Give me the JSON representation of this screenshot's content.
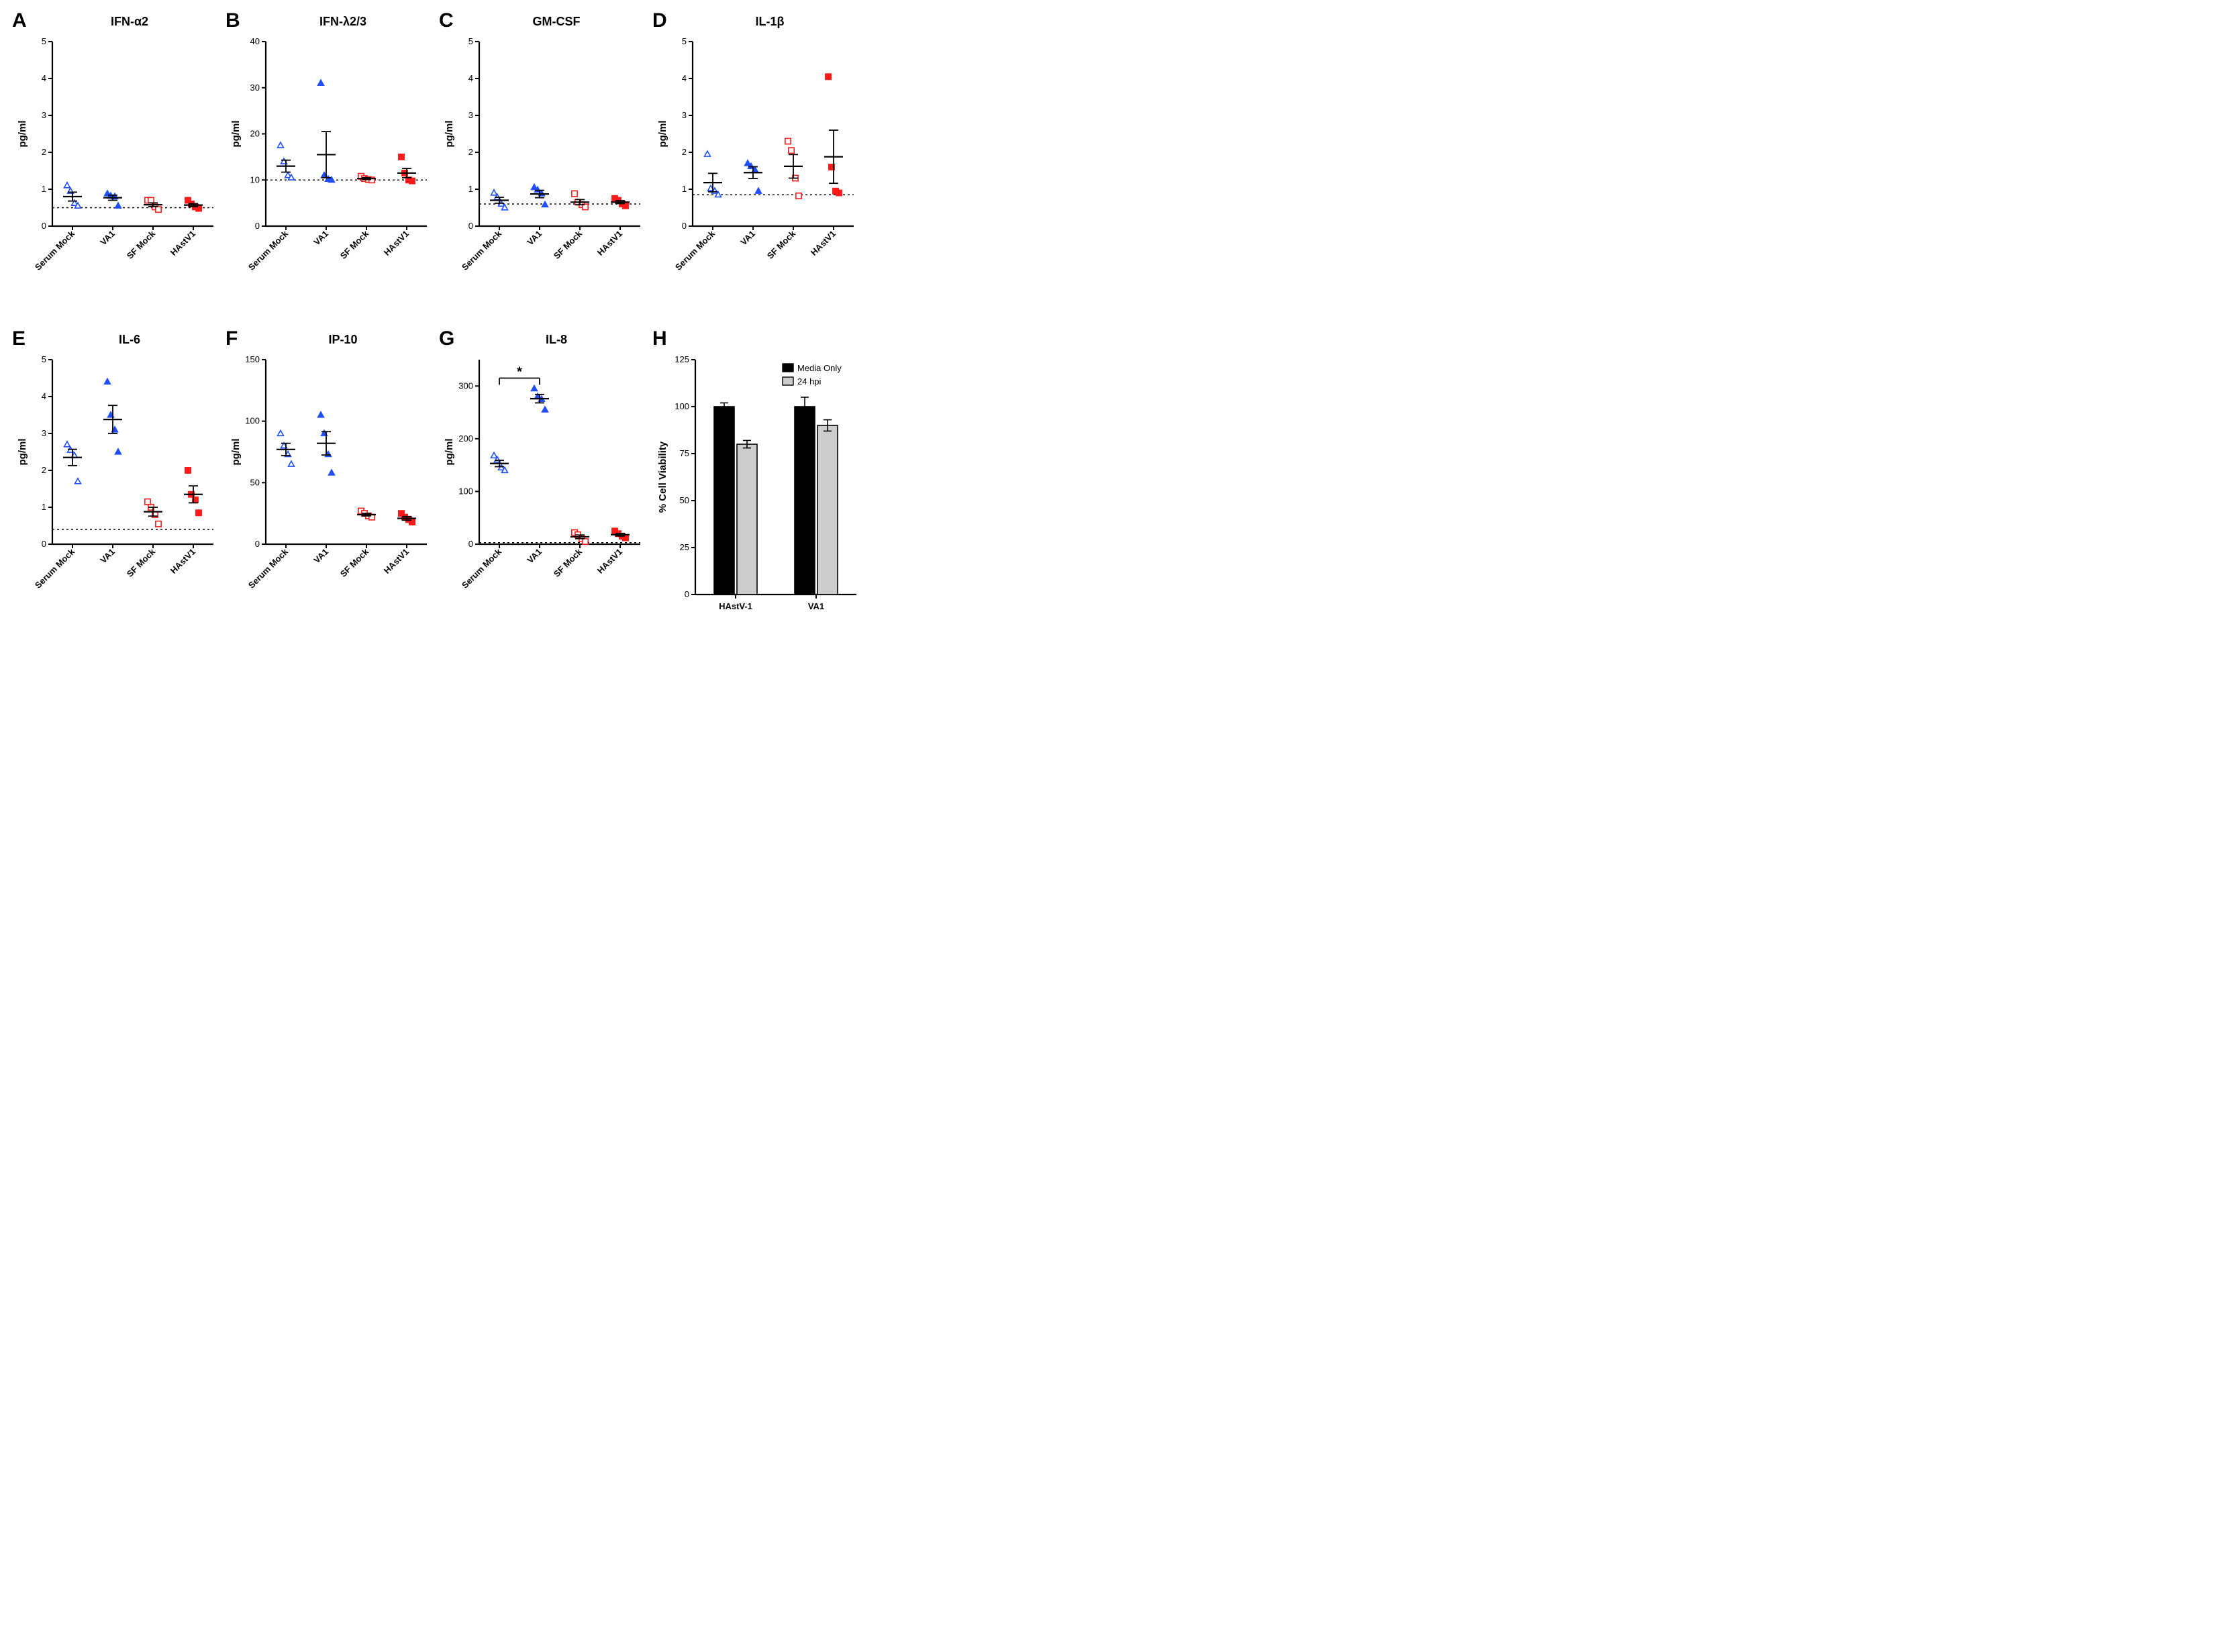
{
  "global": {
    "font_family": "Arial",
    "panel_letter_fontsize": 30,
    "panel_title_fontsize": 18,
    "axis_label_fontsize": 15,
    "tick_fontsize": 13,
    "background": "#ffffff",
    "axis_color": "#000000",
    "dotted_line_color": "#000000",
    "error_bar_color": "#000000",
    "colors": {
      "blue": "#1f4fff",
      "red": "#ff1a1a",
      "black": "#000000",
      "gray": "#cccccc"
    },
    "marker_size": 8,
    "marker_stroke_width": 1.6
  },
  "scatter_x_categories": [
    "Serum Mock",
    "VA1",
    "SF Mock",
    "HAstV1"
  ],
  "scatter_groups": [
    {
      "label": "Serum Mock",
      "marker": "triangle",
      "fill": "none",
      "stroke": "#1f4fff"
    },
    {
      "label": "VA1",
      "marker": "triangle",
      "fill": "#1f4fff",
      "stroke": "#1f4fff"
    },
    {
      "label": "SF Mock",
      "marker": "square",
      "fill": "none",
      "stroke": "#ff1a1a"
    },
    {
      "label": "HAstV1",
      "marker": "square",
      "fill": "#ff1a1a",
      "stroke": "#ff1a1a"
    }
  ],
  "panels": {
    "A": {
      "letter": "A",
      "title": "IFN-α2",
      "ylabel": "pg/ml",
      "ylim": [
        0,
        5
      ],
      "yticks": [
        0,
        1,
        2,
        3,
        4,
        5
      ],
      "dotted_y": 0.5,
      "data": {
        "Serum Mock": [
          1.1,
          0.95,
          0.62,
          0.55
        ],
        "VA1": [
          0.88,
          0.82,
          0.8,
          0.55
        ],
        "SF Mock": [
          0.7,
          0.7,
          0.52,
          0.45
        ],
        "HAstV1": [
          0.7,
          0.6,
          0.52,
          0.48
        ]
      },
      "means": {
        "Serum Mock": 0.8,
        "VA1": 0.77,
        "SF Mock": 0.58,
        "HAstV1": 0.57
      },
      "sems": {
        "Serum Mock": 0.12,
        "VA1": 0.07,
        "SF Mock": 0.05,
        "HAstV1": 0.04
      }
    },
    "B": {
      "letter": "B",
      "title": "IFN-λ2/3",
      "ylabel": "pg/ml",
      "ylim": [
        0,
        40
      ],
      "yticks": [
        0,
        10,
        20,
        30,
        40
      ],
      "dotted_y": 10,
      "data": {
        "Serum Mock": [
          17.5,
          14.0,
          11.0,
          10.5
        ],
        "VA1": [
          31.0,
          11.0,
          10.2,
          10.0
        ],
        "SF Mock": [
          10.8,
          10.3,
          10.1,
          10.0
        ],
        "HAstV1": [
          15.0,
          11.5,
          10.0,
          9.8
        ]
      },
      "means": {
        "Serum Mock": 13.0,
        "VA1": 15.5,
        "SF Mock": 10.3,
        "HAstV1": 11.5
      },
      "sems": {
        "Serum Mock": 1.3,
        "VA1": 5.0,
        "SF Mock": 0.2,
        "HAstV1": 1.0
      }
    },
    "C": {
      "letter": "C",
      "title": "GM-CSF",
      "ylabel": "pg/ml",
      "ylim": [
        0,
        5
      ],
      "yticks": [
        0,
        1,
        2,
        3,
        4,
        5
      ],
      "dotted_y": 0.6,
      "data": {
        "Serum Mock": [
          0.9,
          0.78,
          0.6,
          0.5
        ],
        "VA1": [
          1.05,
          0.98,
          0.88,
          0.58
        ],
        "SF Mock": [
          0.88,
          0.65,
          0.58,
          0.52
        ],
        "HAstV1": [
          0.75,
          0.7,
          0.6,
          0.55
        ]
      },
      "means": {
        "Serum Mock": 0.7,
        "VA1": 0.87,
        "SF Mock": 0.65,
        "HAstV1": 0.65
      },
      "sems": {
        "Serum Mock": 0.08,
        "VA1": 0.1,
        "SF Mock": 0.07,
        "HAstV1": 0.04
      }
    },
    "D": {
      "letter": "D",
      "title": "IL-1β",
      "ylabel": "pg/ml",
      "ylim": [
        0,
        5
      ],
      "yticks": [
        0,
        1,
        2,
        3,
        4,
        5
      ],
      "dotted_y": 0.85,
      "data": {
        "Serum Mock": [
          1.95,
          1.02,
          0.95,
          0.85
        ],
        "VA1": [
          1.7,
          1.62,
          1.52,
          0.95
        ],
        "SF Mock": [
          2.3,
          2.05,
          1.3,
          0.82
        ],
        "HAstV1": [
          4.05,
          1.6,
          0.95,
          0.9
        ]
      },
      "means": {
        "Serum Mock": 1.18,
        "VA1": 1.45,
        "SF Mock": 1.62,
        "HAstV1": 1.88
      },
      "sems": {
        "Serum Mock": 0.25,
        "VA1": 0.16,
        "SF Mock": 0.32,
        "HAstV1": 0.72
      }
    },
    "E": {
      "letter": "E",
      "title": "IL-6",
      "ylabel": "pg/ml",
      "ylim": [
        0,
        5
      ],
      "yticks": [
        0,
        1,
        2,
        3,
        4,
        5
      ],
      "dotted_y": 0.4,
      "data": {
        "Serum Mock": [
          2.7,
          2.55,
          2.4,
          1.7
        ],
        "VA1": [
          4.4,
          3.5,
          3.1,
          2.5
        ],
        "SF Mock": [
          1.15,
          1.0,
          0.8,
          0.55
        ],
        "HAstV1": [
          2.0,
          1.35,
          1.2,
          0.85
        ]
      },
      "means": {
        "Serum Mock": 2.35,
        "VA1": 3.38,
        "SF Mock": 0.88,
        "HAstV1": 1.35
      },
      "sems": {
        "Serum Mock": 0.22,
        "VA1": 0.38,
        "SF Mock": 0.12,
        "HAstV1": 0.23
      }
    },
    "F": {
      "letter": "F",
      "title": "IP-10",
      "ylabel": "pg/ml",
      "ylim": [
        0,
        150
      ],
      "yticks": [
        0,
        50,
        100,
        150
      ],
      "data": {
        "Serum Mock": [
          90,
          80,
          73,
          65
        ],
        "VA1": [
          105,
          90,
          73,
          58
        ],
        "SF Mock": [
          27,
          25,
          23,
          22
        ],
        "HAstV1": [
          25,
          22,
          20,
          18
        ]
      },
      "means": {
        "Serum Mock": 77,
        "VA1": 82,
        "SF Mock": 24,
        "HAstV1": 21
      },
      "sems": {
        "Serum Mock": 5,
        "VA1": 9.5,
        "SF Mock": 1,
        "HAstV1": 1.5
      }
    },
    "G": {
      "letter": "G",
      "title": "IL-8",
      "ylabel": "pg/ml",
      "ylim": [
        0,
        350
      ],
      "yticks": [
        0,
        100,
        200,
        300
      ],
      "dotted_y": 3,
      "data": {
        "Serum Mock": [
          168,
          160,
          145,
          140
        ],
        "VA1": [
          295,
          280,
          275,
          255
        ],
        "SF Mock": [
          22,
          18,
          10,
          5
        ],
        "HAstV1": [
          25,
          20,
          15,
          12
        ]
      },
      "means": {
        "Serum Mock": 153,
        "VA1": 276,
        "SF Mock": 14,
        "HAstV1": 18
      },
      "sems": {
        "Serum Mock": 6,
        "VA1": 8,
        "SF Mock": 3.5,
        "HAstV1": 2.5
      },
      "significance": {
        "between": [
          "Serum Mock",
          "VA1"
        ],
        "label": "*",
        "y": 315
      }
    },
    "H": {
      "letter": "H",
      "title": "",
      "type": "bar",
      "ylabel": "% Cell Viability",
      "ylim": [
        0,
        125
      ],
      "yticks": [
        0,
        25,
        50,
        75,
        100,
        125
      ],
      "x_categories": [
        "HAstV-1",
        "VA1"
      ],
      "series": [
        {
          "name": "Media Only",
          "fill": "#000000",
          "values": {
            "HAstV-1": 100,
            "VA1": 100
          },
          "sems": {
            "HAstV-1": 2,
            "VA1": 5
          }
        },
        {
          "name": "24 hpi",
          "fill": "#cccccc",
          "values": {
            "HAstV-1": 80,
            "VA1": 90
          },
          "sems": {
            "HAstV-1": 2,
            "VA1": 3
          }
        }
      ],
      "legend": {
        "items": [
          "Media Only",
          "24 hpi"
        ],
        "swatch_colors": [
          "#000000",
          "#cccccc"
        ]
      }
    }
  }
}
